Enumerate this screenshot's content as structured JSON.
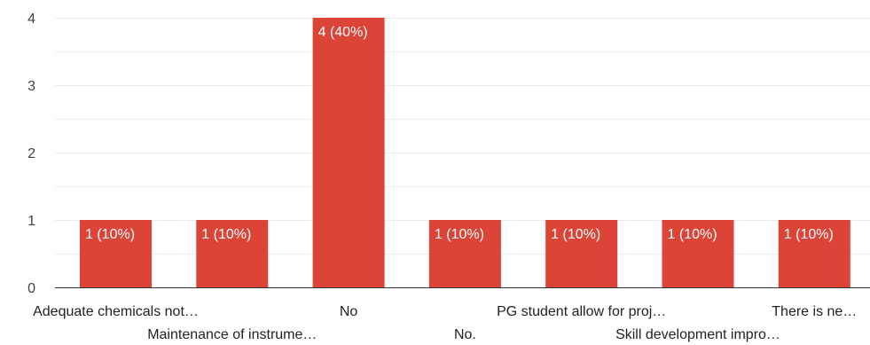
{
  "chart_data": {
    "type": "bar",
    "categories": [
      "Adequate chemicals not…",
      "Maintenance of instrume…",
      "No",
      "No.",
      "PG student allow for proj…",
      "Skill development impro…",
      "There is ne…"
    ],
    "values": [
      1,
      1,
      4,
      1,
      1,
      1,
      1
    ],
    "data_labels": [
      "1 (10%)",
      "1 (10%)",
      "4 (40%)",
      "1 (10%)",
      "1 (10%)",
      "1 (10%)",
      "1 (10%)"
    ],
    "y_ticks": [
      "0",
      "1",
      "2",
      "3",
      "4"
    ],
    "ylim": [
      0,
      4
    ],
    "grid": true,
    "legend": "none",
    "title": "",
    "xlabel": "",
    "ylabel": "",
    "colors": {
      "bar": "#db4437"
    }
  }
}
